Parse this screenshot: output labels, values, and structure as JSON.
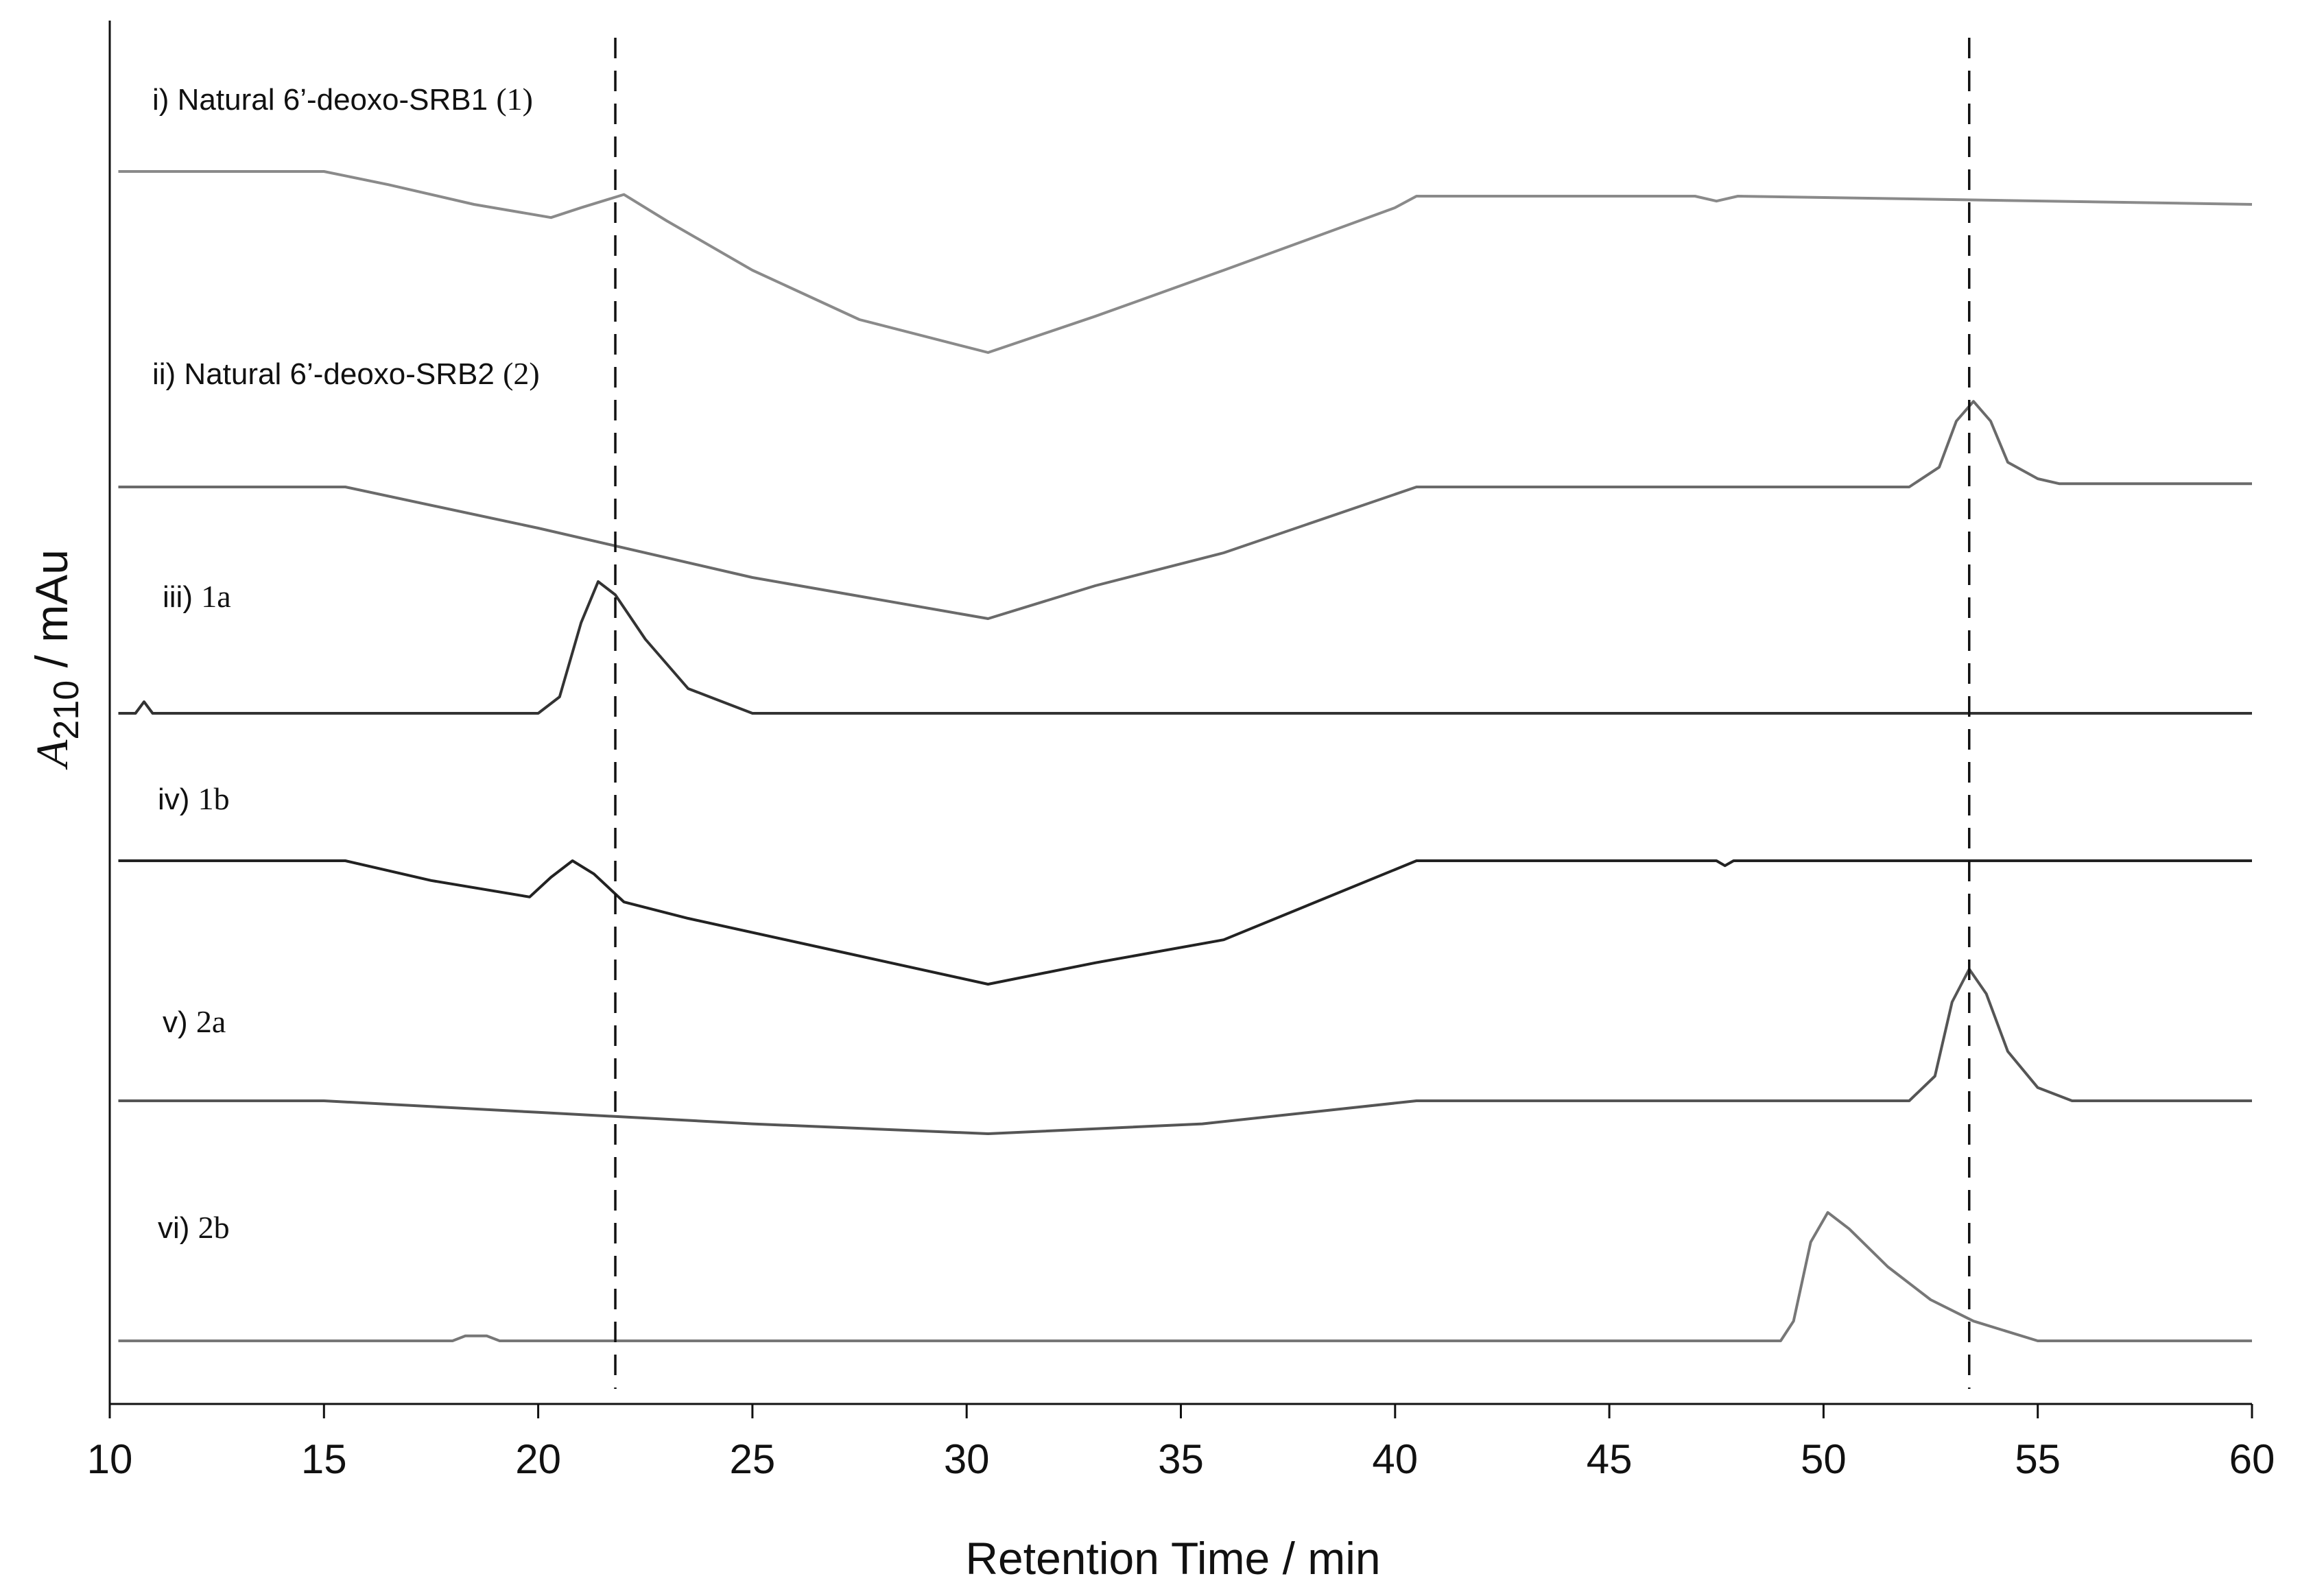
{
  "chart_data": {
    "type": "line",
    "title": "",
    "xlabel": "Retention Time / min",
    "ylabel": {
      "symbol": "A",
      "subscript": "210",
      "unit": " / mAu"
    },
    "xlim": [
      10,
      60
    ],
    "x_ticks": [
      10,
      15,
      20,
      25,
      30,
      35,
      40,
      45,
      50,
      55,
      60
    ],
    "grid": false,
    "reference_lines": [
      {
        "name": "ref-1",
        "x": 21.8
      },
      {
        "name": "ref-2",
        "x": 53.4
      }
    ],
    "series": [
      {
        "id": "i",
        "prefix": "i) Natural 6’-deoxo-SRB1 ",
        "compound": "(1)",
        "color": "#8a8a8a",
        "points": [
          [
            10.2,
            0
          ],
          [
            15,
            0
          ],
          [
            16.5,
            -8
          ],
          [
            18.5,
            -20
          ],
          [
            20.3,
            -28
          ],
          [
            21,
            -22
          ],
          [
            22,
            -14
          ],
          [
            23,
            -30
          ],
          [
            25,
            -60
          ],
          [
            27.5,
            -90
          ],
          [
            30.5,
            -110
          ],
          [
            33,
            -88
          ],
          [
            36,
            -60
          ],
          [
            40,
            -22
          ],
          [
            40.5,
            -15
          ],
          [
            47,
            -15
          ],
          [
            47.5,
            -18
          ],
          [
            48,
            -15
          ],
          [
            60,
            -20
          ]
        ]
      },
      {
        "id": "ii",
        "prefix": "ii) Natural 6’-deoxo-SRB2 ",
        "compound": "(2)",
        "color": "#6a6a6a",
        "points": [
          [
            10.2,
            0
          ],
          [
            15.5,
            0
          ],
          [
            20,
            -25
          ],
          [
            25,
            -55
          ],
          [
            30.5,
            -80
          ],
          [
            33,
            -60
          ],
          [
            36,
            -40
          ],
          [
            40.5,
            0
          ],
          [
            52,
            0
          ],
          [
            52.7,
            12
          ],
          [
            53.1,
            40
          ],
          [
            53.5,
            52
          ],
          [
            53.9,
            40
          ],
          [
            54.3,
            15
          ],
          [
            55,
            5
          ],
          [
            55.5,
            2
          ],
          [
            60,
            2
          ]
        ]
      },
      {
        "id": "iii",
        "prefix": "iii) ",
        "compound": "1a",
        "color": "#333333",
        "points": [
          [
            10.2,
            0
          ],
          [
            10.6,
            0
          ],
          [
            10.8,
            7
          ],
          [
            11,
            0
          ],
          [
            20,
            0
          ],
          [
            20.5,
            10
          ],
          [
            21,
            55
          ],
          [
            21.4,
            80
          ],
          [
            21.8,
            72
          ],
          [
            22.5,
            45
          ],
          [
            23.5,
            15
          ],
          [
            25,
            0
          ],
          [
            60,
            0
          ]
        ]
      },
      {
        "id": "iv",
        "prefix": "iv) ",
        "compound": "1b",
        "color": "#222222",
        "points": [
          [
            10.2,
            0
          ],
          [
            15.5,
            0
          ],
          [
            17.5,
            -12
          ],
          [
            19.8,
            -22
          ],
          [
            20.3,
            -10
          ],
          [
            20.8,
            0
          ],
          [
            21.3,
            -8
          ],
          [
            22,
            -25
          ],
          [
            23.5,
            -35
          ],
          [
            27,
            -55
          ],
          [
            30.5,
            -75
          ],
          [
            33,
            -62
          ],
          [
            36,
            -48
          ],
          [
            40.5,
            0
          ],
          [
            47.5,
            0
          ],
          [
            47.7,
            -3
          ],
          [
            47.9,
            0
          ],
          [
            60,
            0
          ]
        ]
      },
      {
        "id": "v",
        "prefix": "v) ",
        "compound": "2a",
        "color": "#555555",
        "points": [
          [
            10.2,
            0
          ],
          [
            15,
            0
          ],
          [
            20,
            -7
          ],
          [
            25,
            -14
          ],
          [
            30.5,
            -20
          ],
          [
            35.5,
            -14
          ],
          [
            40.5,
            0
          ],
          [
            52,
            0
          ],
          [
            52.6,
            15
          ],
          [
            53,
            60
          ],
          [
            53.4,
            80
          ],
          [
            53.8,
            65
          ],
          [
            54.3,
            30
          ],
          [
            55,
            8
          ],
          [
            55.8,
            0
          ],
          [
            60,
            0
          ]
        ]
      },
      {
        "id": "vi",
        "prefix": "vi) ",
        "compound": "2b",
        "color": "#777777",
        "points": [
          [
            10.2,
            0
          ],
          [
            18,
            0
          ],
          [
            18.3,
            3
          ],
          [
            18.8,
            3
          ],
          [
            19.1,
            0
          ],
          [
            49,
            0
          ],
          [
            49.3,
            12
          ],
          [
            49.7,
            60
          ],
          [
            50.1,
            78
          ],
          [
            50.6,
            68
          ],
          [
            51.5,
            45
          ],
          [
            52.5,
            25
          ],
          [
            53.5,
            12
          ],
          [
            55,
            0
          ],
          [
            60,
            0
          ]
        ]
      }
    ]
  }
}
